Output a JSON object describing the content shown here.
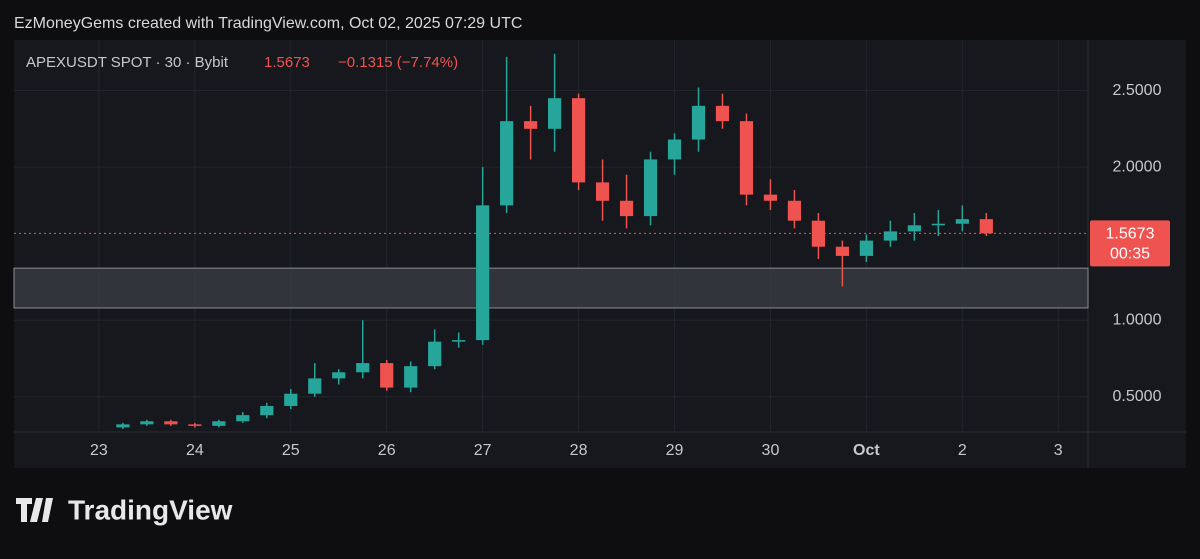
{
  "header": {
    "credit": "EzMoneyGems created with TradingView.com, Oct 02, 2025 07:29 UTC"
  },
  "chart_data": {
    "type": "candlestick",
    "title": "APEXUSDT SPOT · 30 · Bybit",
    "last_price": 1.5673,
    "change_label": "−0.1315 (−7.74%)",
    "countdown": "00:35",
    "x": [
      23.25,
      23.5,
      23.75,
      24,
      24.25,
      24.5,
      24.75,
      25,
      25.25,
      25.5,
      25.75,
      26,
      26.25,
      26.5,
      26.75,
      27,
      27.25,
      27.5,
      27.75,
      28,
      28.25,
      28.5,
      28.75,
      29,
      29.25,
      29.5,
      29.75,
      30,
      30.25,
      30.5,
      30.75,
      31,
      31.25,
      31.5,
      31.75,
      32,
      32.25
    ],
    "open": [
      0.3,
      0.32,
      0.34,
      0.32,
      0.31,
      0.34,
      0.38,
      0.44,
      0.52,
      0.62,
      0.66,
      0.72,
      0.56,
      0.7,
      0.86,
      0.87,
      1.75,
      2.3,
      2.25,
      2.45,
      1.9,
      1.78,
      1.68,
      2.05,
      2.18,
      2.4,
      2.3,
      1.82,
      1.78,
      1.65,
      1.48,
      1.42,
      1.52,
      1.58,
      1.62,
      1.63,
      1.66
    ],
    "high": [
      0.33,
      0.35,
      0.35,
      0.33,
      0.35,
      0.4,
      0.46,
      0.55,
      0.72,
      0.68,
      1.0,
      0.74,
      0.73,
      0.94,
      0.92,
      2.0,
      2.72,
      2.4,
      2.74,
      2.48,
      2.05,
      1.95,
      2.1,
      2.22,
      2.52,
      2.48,
      2.35,
      1.92,
      1.85,
      1.7,
      1.52,
      1.56,
      1.65,
      1.7,
      1.72,
      1.75,
      1.7
    ],
    "low": [
      0.29,
      0.31,
      0.31,
      0.3,
      0.3,
      0.33,
      0.36,
      0.42,
      0.5,
      0.58,
      0.62,
      0.54,
      0.53,
      0.68,
      0.82,
      0.84,
      1.7,
      2.05,
      2.1,
      1.85,
      1.65,
      1.6,
      1.62,
      1.95,
      2.1,
      2.25,
      1.75,
      1.72,
      1.6,
      1.4,
      1.22,
      1.38,
      1.48,
      1.52,
      1.55,
      1.58,
      1.55
    ],
    "close": [
      0.32,
      0.34,
      0.32,
      0.31,
      0.34,
      0.38,
      0.44,
      0.52,
      0.62,
      0.66,
      0.72,
      0.56,
      0.7,
      0.86,
      0.87,
      1.75,
      2.3,
      2.25,
      2.45,
      1.9,
      1.78,
      1.68,
      2.05,
      2.18,
      2.4,
      2.3,
      1.82,
      1.78,
      1.65,
      1.48,
      1.42,
      1.52,
      1.58,
      1.62,
      1.63,
      1.66,
      1.5673
    ],
    "up_color": "#26a69a",
    "down_color": "#ef5350",
    "zone": [
      1.08,
      1.34
    ],
    "zone_color": "#3a3c45",
    "xlim": [
      22.115,
      33.31
    ],
    "xticks": [
      23,
      24,
      25,
      26,
      27,
      28,
      29,
      30,
      {
        "value": 31,
        "label": "Oct"
      },
      {
        "value": 32,
        "label": "2"
      },
      {
        "value": 33,
        "label": "3"
      }
    ],
    "ylim": [
      0.27,
      2.83
    ],
    "yticks": [
      {
        "value": 0.5,
        "label": "0.5000"
      },
      {
        "value": 1,
        "label": "1.0000"
      },
      {
        "value": 2,
        "label": "2.0000"
      },
      {
        "value": 2.5,
        "label": "2.5000"
      }
    ],
    "grid": true
  },
  "footer": {
    "brand": "TradingView"
  }
}
